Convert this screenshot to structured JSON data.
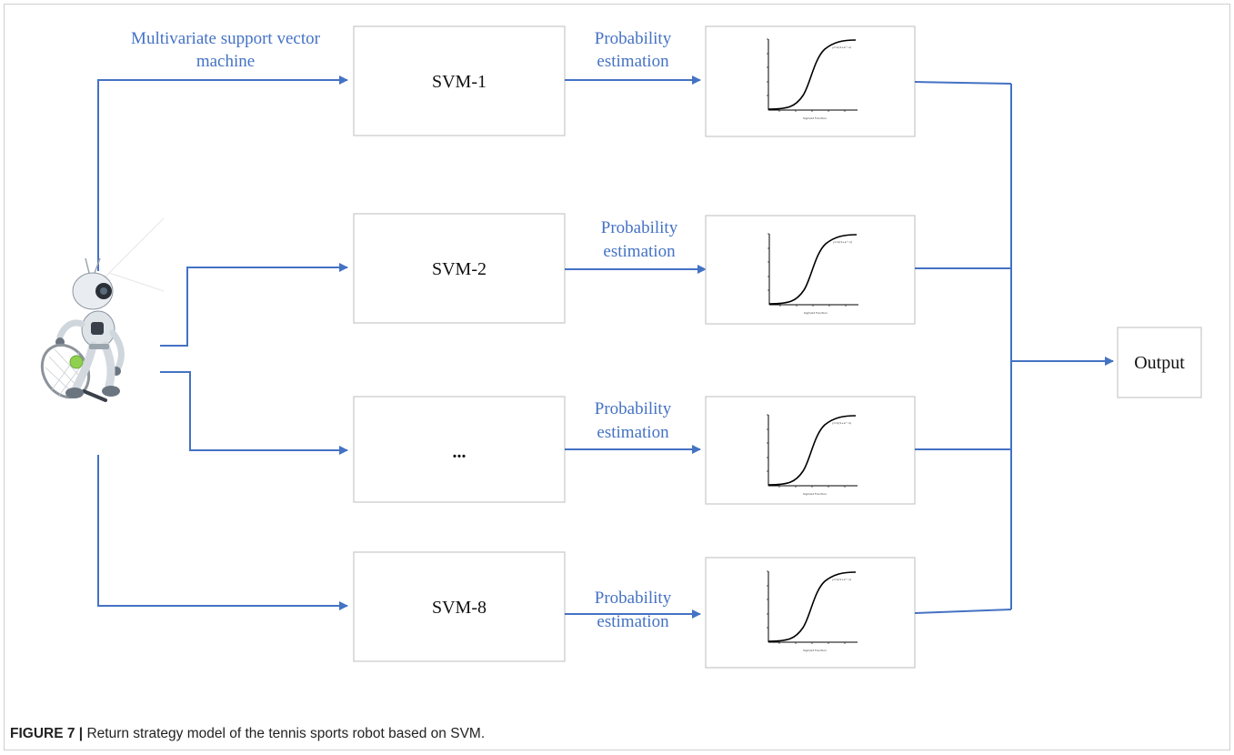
{
  "colors": {
    "arrow": "#4472c4",
    "box_border": "#c8c8c8",
    "text_blue": "#4472c4"
  },
  "top_label": {
    "line1": "Multivariate support vector",
    "line2": "machine"
  },
  "svm_boxes": [
    {
      "label": "SVM-1"
    },
    {
      "label": "SVM-2"
    },
    {
      "label": "..."
    },
    {
      "label": "SVM-8"
    }
  ],
  "prob_label": {
    "line1": "Probability",
    "line2": "estimation"
  },
  "sigmoid_plot": {
    "x_caption": "Sigmoid Function",
    "legend": "y=1/(1+e^-x)"
  },
  "output": {
    "label": "Output"
  },
  "robot_icon": "tennis-robot-icon",
  "caption": {
    "prefix": "FIGURE 7 |",
    "text": " Return strategy model of the tennis sports robot based on SVM."
  }
}
